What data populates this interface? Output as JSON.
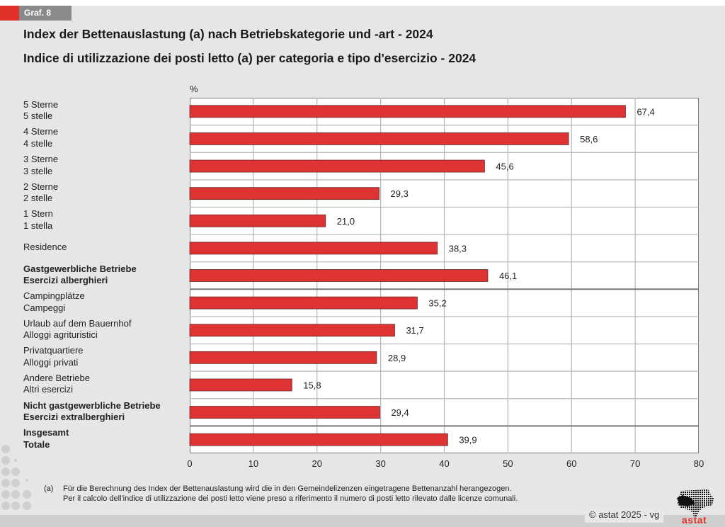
{
  "header": {
    "badge": "Graf. 8",
    "title_de": "Index der Bettenauslastung (a) nach Betriebskategorie und -art - 2024",
    "title_it": "Indice di utilizzazione dei posti letto (a) per categoria e tipo d'esercizio - 2024"
  },
  "colors": {
    "bar": "#dd3333",
    "accent": "#e0312b",
    "badge_bg": "#8a8a8a"
  },
  "chart_data": {
    "type": "bar",
    "orientation": "horizontal",
    "title": "Index der Bettenauslastung (a) nach Betriebskategorie und -art - 2024 / Indice di utilizzazione dei posti letto (a) per categoria e tipo d'esercizio - 2024",
    "unit_label": "%",
    "xlabel": "",
    "ylabel": "",
    "xlim": [
      0,
      80
    ],
    "xticks": [
      "0",
      "10",
      "20",
      "30",
      "40",
      "50",
      "60",
      "70",
      "80"
    ],
    "grid": true,
    "categories": [
      {
        "de": "5 Sterne",
        "it": "5 stelle",
        "bold": false
      },
      {
        "de": "4 Sterne",
        "it": "4 stelle",
        "bold": false
      },
      {
        "de": "3 Sterne",
        "it": "3 stelle",
        "bold": false
      },
      {
        "de": "2 Sterne",
        "it": "2 stelle",
        "bold": false
      },
      {
        "de": "1 Stern",
        "it": "1 stella",
        "bold": false
      },
      {
        "de": "Residence",
        "it": "",
        "bold": false
      },
      {
        "de": "Gastgewerbliche Betriebe",
        "it": "Esercizi alberghieri",
        "bold": true
      },
      {
        "de": "Campingplätze",
        "it": "Campeggi",
        "bold": false
      },
      {
        "de": "Urlaub auf dem Bauernhof",
        "it": "Alloggi agrituristici",
        "bold": false
      },
      {
        "de": "Privatquartiere",
        "it": "Alloggi privati",
        "bold": false
      },
      {
        "de": "Andere Betriebe",
        "it": "Altri esercizi",
        "bold": false
      },
      {
        "de": "Nicht gastgewerbliche Betriebe",
        "it": "Esercizi extralberghieri",
        "bold": true
      },
      {
        "de": "Insgesamt",
        "it": "Totale",
        "bold": true
      }
    ],
    "values": [
      67.4,
      58.6,
      45.6,
      29.3,
      21.0,
      38.3,
      46.1,
      35.2,
      31.7,
      28.9,
      15.8,
      29.4,
      39.9
    ],
    "value_labels": [
      "67,4",
      "58,6",
      "45,6",
      "29,3",
      "21,0",
      "38,3",
      "46,1",
      "35,2",
      "31,7",
      "28,9",
      "15,8",
      "29,4",
      "39,9"
    ]
  },
  "footnote": {
    "mark": "(a)",
    "line_de": "Für die Berechnung des Index der Bettenauslastung wird die in den Gemeindelizenzen eingetragene Bettenanzahl herangezogen.",
    "line_it": "Per il calcolo dell'indice di utilizzazione dei posti letto viene preso a riferimento il numero di posti letto rilevato dalle licenze comunali."
  },
  "credit": "© astat 2025 - vg",
  "logo_text": "astat"
}
